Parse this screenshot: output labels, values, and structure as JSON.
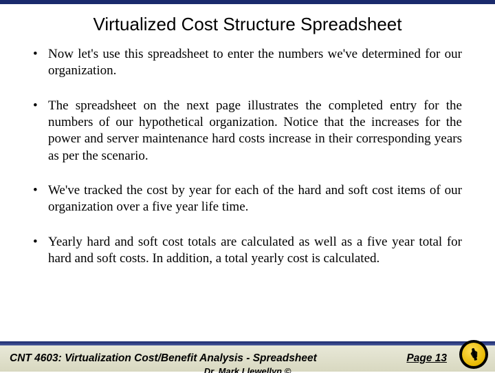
{
  "title": "Virtualized Cost Structure Spreadsheet",
  "bullets": {
    "b0": "Now let's use this spreadsheet to enter the numbers we've determined for our organization.",
    "b1": "The spreadsheet on the next page illustrates the completed entry for the numbers of our hypothetical organization.  Notice that the increases for the power and server maintenance hard costs increase in their corresponding years as per the scenario.",
    "b2": "We've tracked the cost by year for each of the hard and soft cost items of our organization over a five year life time.",
    "b3": "Yearly hard and soft cost totals are calculated as well as a five year total for hard and soft costs.  In addition, a total yearly cost is calculated."
  },
  "footer": {
    "course": "CNT 4603: Virtualization Cost/Benefit Analysis - Spreadsheet",
    "page": "Page 13",
    "sub": "Dr. Mark Llewellyn ©"
  },
  "colors": {
    "accent_navy": "#1a2a6c",
    "footer_bg_top": "#e8e8d8",
    "footer_bg_bottom": "#d8d8c0",
    "logo_gold": "#e6b800"
  }
}
